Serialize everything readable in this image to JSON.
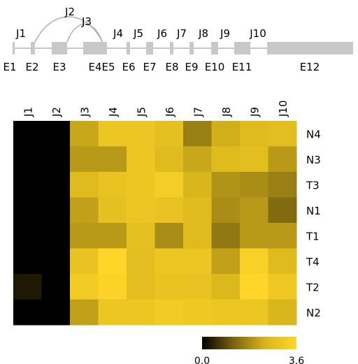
{
  "gene_model": {
    "exons": [
      {
        "label": "E1",
        "start": 18,
        "end": 18
      },
      {
        "label": "E2",
        "start": 44,
        "end": 50
      },
      {
        "label": "E3",
        "start": 74,
        "end": 96
      },
      {
        "label": "E4",
        "start": 119,
        "end": 140
      },
      {
        "label": "E5",
        "start": 140,
        "end": 153
      },
      {
        "label": "E6",
        "start": 181,
        "end": 186
      },
      {
        "label": "E7",
        "start": 209,
        "end": 219
      },
      {
        "label": "E8",
        "start": 243,
        "end": 248
      },
      {
        "label": "E9",
        "start": 271,
        "end": 277
      },
      {
        "label": "E10",
        "start": 302,
        "end": 312
      },
      {
        "label": "E11",
        "start": 335,
        "end": 358
      },
      {
        "label": "E12",
        "start": 382,
        "end": 505
      }
    ],
    "junctions": [
      {
        "label": "J1",
        "from": "E1",
        "to": "E2",
        "arc": false
      },
      {
        "label": "J2",
        "from": "E2",
        "to": "E5",
        "arc": true
      },
      {
        "label": "J3",
        "from": "E3",
        "to": "E5",
        "arc": true
      },
      {
        "label": "J4",
        "from": "E5",
        "to": "E6",
        "arc": false
      },
      {
        "label": "J5",
        "from": "E6",
        "to": "E7",
        "arc": false
      },
      {
        "label": "J6",
        "from": "E7",
        "to": "E8",
        "arc": false
      },
      {
        "label": "J7",
        "from": "E8",
        "to": "E9",
        "arc": false
      },
      {
        "label": "J8",
        "from": "E9",
        "to": "E10",
        "arc": false
      },
      {
        "label": "J9",
        "from": "E10",
        "to": "E11",
        "arc": false
      },
      {
        "label": "J10",
        "from": "E11",
        "to": "E12",
        "arc": false
      }
    ]
  },
  "chart_data": {
    "type": "heatmap",
    "columns": [
      "J1",
      "J2",
      "J3",
      "J4",
      "J5",
      "J6",
      "J7",
      "J8",
      "J9",
      "J10"
    ],
    "rows": [
      "N4",
      "N3",
      "T3",
      "N1",
      "T1",
      "T4",
      "T2",
      "N2"
    ],
    "values": [
      [
        0.0,
        0.0,
        2.2,
        3.0,
        3.0,
        2.8,
        1.6,
        2.3,
        2.6,
        2.7
      ],
      [
        0.0,
        0.0,
        2.0,
        2.0,
        3.0,
        2.6,
        2.2,
        2.6,
        2.7,
        2.0
      ],
      [
        0.0,
        0.0,
        2.6,
        2.9,
        3.0,
        3.3,
        2.4,
        1.9,
        1.8,
        1.6
      ],
      [
        0.0,
        0.0,
        2.1,
        2.8,
        3.0,
        2.9,
        2.6,
        1.8,
        2.0,
        1.3
      ],
      [
        0.0,
        0.0,
        2.0,
        2.0,
        2.8,
        1.8,
        2.6,
        1.5,
        2.0,
        2.0
      ],
      [
        0.0,
        0.0,
        2.9,
        3.6,
        2.7,
        3.0,
        3.0,
        2.1,
        3.4,
        2.6
      ],
      [
        0.3,
        0.0,
        3.2,
        3.5,
        2.7,
        2.9,
        2.9,
        2.5,
        3.6,
        3.1
      ],
      [
        0.0,
        0.0,
        2.1,
        3.0,
        3.0,
        3.2,
        3.1,
        3.0,
        3.0,
        2.4
      ]
    ],
    "colorbar": {
      "min": 0.0,
      "max": 3.6,
      "min_label": "0.0",
      "max_label": "3.6",
      "colors": [
        "#000000",
        "#7a6310",
        "#d8b61c",
        "#ffd52a"
      ]
    }
  }
}
